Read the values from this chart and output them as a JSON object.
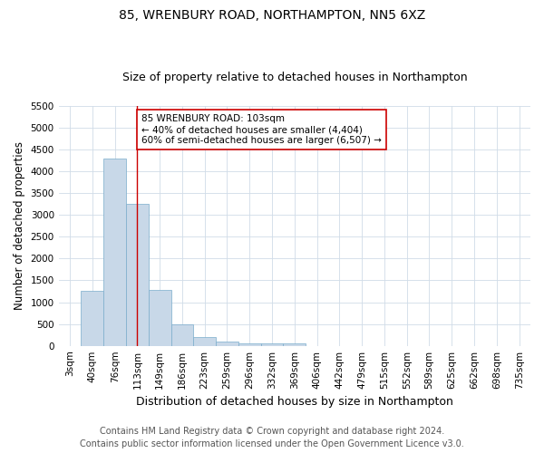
{
  "title": "85, WRENBURY ROAD, NORTHAMPTON, NN5 6XZ",
  "subtitle": "Size of property relative to detached houses in Northampton",
  "xlabel": "Distribution of detached houses by size in Northampton",
  "ylabel": "Number of detached properties",
  "footer_line1": "Contains HM Land Registry data © Crown copyright and database right 2024.",
  "footer_line2": "Contains public sector information licensed under the Open Government Licence v3.0.",
  "bin_labels": [
    "3sqm",
    "40sqm",
    "76sqm",
    "113sqm",
    "149sqm",
    "186sqm",
    "223sqm",
    "259sqm",
    "296sqm",
    "332sqm",
    "369sqm",
    "406sqm",
    "442sqm",
    "479sqm",
    "515sqm",
    "552sqm",
    "589sqm",
    "625sqm",
    "662sqm",
    "698sqm",
    "735sqm"
  ],
  "bar_values": [
    0,
    1260,
    4300,
    3250,
    1280,
    490,
    210,
    90,
    60,
    50,
    55,
    0,
    0,
    0,
    0,
    0,
    0,
    0,
    0,
    0,
    0
  ],
  "bar_color": "#c8d8e8",
  "bar_edge_color": "#7aaccc",
  "vline_x": 3.0,
  "vline_color": "#cc0000",
  "annotation_text": "85 WRENBURY ROAD: 103sqm\n← 40% of detached houses are smaller (4,404)\n60% of semi-detached houses are larger (6,507) →",
  "annotation_box_color": "#ffffff",
  "annotation_box_edge_color": "#cc0000",
  "ylim": [
    0,
    5500
  ],
  "yticks": [
    0,
    500,
    1000,
    1500,
    2000,
    2500,
    3000,
    3500,
    4000,
    4500,
    5000,
    5500
  ],
  "title_fontsize": 10,
  "subtitle_fontsize": 9,
  "xlabel_fontsize": 9,
  "ylabel_fontsize": 8.5,
  "tick_fontsize": 7.5,
  "annotation_fontsize": 7.5,
  "footer_fontsize": 7,
  "background_color": "#ffffff",
  "grid_color": "#d0dce8"
}
